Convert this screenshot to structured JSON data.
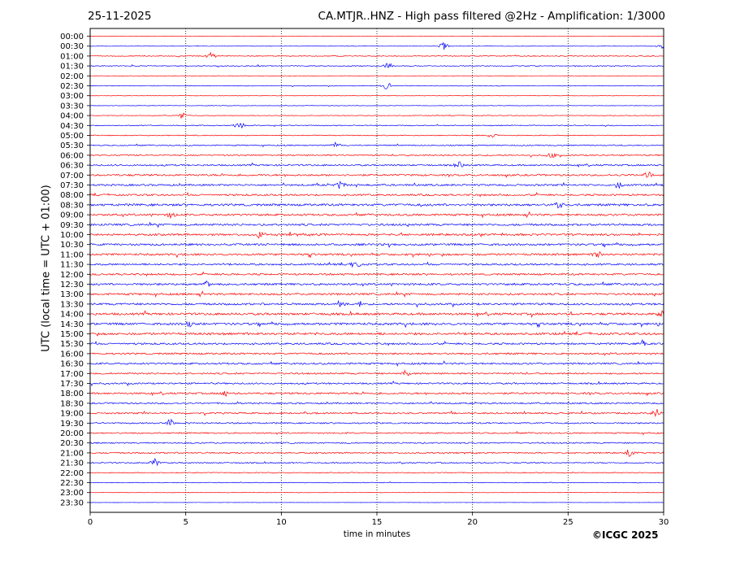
{
  "header": {
    "date": "25-11-2025",
    "title": "CA.MTJR..HNZ - High pass filtered @2Hz - Amplification: 1/3000"
  },
  "footer": {
    "copyright": "©ICGC 2025"
  },
  "chart_data": {
    "type": "line",
    "title": "CA.MTJR..HNZ - High pass filtered @2Hz - Amplification: 1/3000",
    "xlabel": "time in minutes",
    "ylabel": "UTC (local time = UTC + 01:00)",
    "xlim": [
      0,
      30
    ],
    "x_ticks": [
      0,
      5,
      10,
      15,
      20,
      25,
      30
    ],
    "grid": "vertical dotted at 5-minute intervals",
    "rows": [
      "00:00",
      "00:30",
      "01:00",
      "01:30",
      "02:00",
      "02:30",
      "03:00",
      "03:30",
      "04:00",
      "04:30",
      "05:00",
      "05:30",
      "06:00",
      "06:30",
      "07:00",
      "07:30",
      "08:00",
      "08:30",
      "09:00",
      "09:30",
      "10:00",
      "10:30",
      "11:00",
      "11:30",
      "12:00",
      "12:30",
      "13:00",
      "13:30",
      "14:00",
      "14:30",
      "15:00",
      "15:30",
      "16:00",
      "16:30",
      "17:00",
      "17:30",
      "18:00",
      "18:30",
      "19:00",
      "19:30",
      "20:00",
      "20:30",
      "21:00",
      "21:30",
      "22:00",
      "22:30",
      "23:00",
      "23:30"
    ],
    "row_colors": [
      "#ff0000",
      "#0000ff"
    ],
    "row_activity": [
      0.05,
      0.2,
      0.4,
      0.4,
      0.2,
      0.3,
      0.2,
      0.2,
      0.3,
      0.4,
      0.4,
      0.5,
      0.6,
      0.7,
      0.8,
      0.8,
      0.8,
      1.0,
      0.9,
      0.9,
      0.9,
      0.9,
      0.9,
      0.8,
      0.8,
      0.9,
      0.9,
      0.9,
      1.0,
      1.0,
      1.0,
      0.8,
      0.8,
      0.8,
      0.7,
      0.7,
      0.8,
      0.7,
      0.7,
      0.6,
      0.6,
      0.6,
      0.6,
      0.5,
      0.4,
      0.3,
      0.15,
      0.1
    ],
    "events": [
      {
        "row": "00:30",
        "minute": 18.5
      },
      {
        "row": "00:30",
        "minute": 29.9
      },
      {
        "row": "01:00",
        "minute": 6.3
      },
      {
        "row": "01:30",
        "minute": 15.6
      },
      {
        "row": "02:30",
        "minute": 15.5
      },
      {
        "row": "04:00",
        "minute": 4.8
      },
      {
        "row": "04:30",
        "minute": 7.8
      },
      {
        "row": "05:00",
        "minute": 21.0
      },
      {
        "row": "05:30",
        "minute": 12.9
      },
      {
        "row": "06:00",
        "minute": 24.1
      },
      {
        "row": "06:30",
        "minute": 19.3
      },
      {
        "row": "07:00",
        "minute": 29.2
      },
      {
        "row": "07:30",
        "minute": 13.1
      },
      {
        "row": "07:30",
        "minute": 27.6
      },
      {
        "row": "08:30",
        "minute": 24.5
      },
      {
        "row": "09:00",
        "minute": 4.3
      },
      {
        "row": "10:00",
        "minute": 8.9
      },
      {
        "row": "11:00",
        "minute": 26.5
      },
      {
        "row": "11:30",
        "minute": 13.9
      },
      {
        "row": "12:30",
        "minute": 6.1
      },
      {
        "row": "13:30",
        "minute": 14.1
      },
      {
        "row": "13:30",
        "minute": 13.1
      },
      {
        "row": "14:00",
        "minute": 29.9
      },
      {
        "row": "14:30",
        "minute": 5.2
      },
      {
        "row": "15:30",
        "minute": 28.9
      },
      {
        "row": "17:00",
        "minute": 16.5
      },
      {
        "row": "18:00",
        "minute": 7.0
      },
      {
        "row": "19:00",
        "minute": 29.6
      },
      {
        "row": "19:30",
        "minute": 4.2
      },
      {
        "row": "21:00",
        "minute": 28.2
      },
      {
        "row": "21:30",
        "minute": 3.4
      }
    ]
  }
}
